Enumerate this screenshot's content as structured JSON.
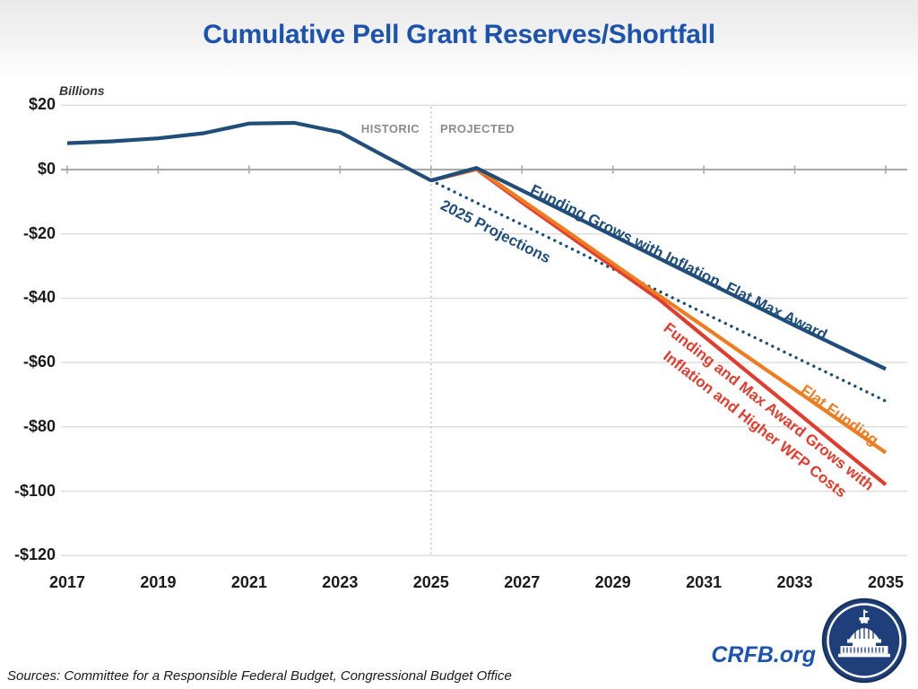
{
  "header": {
    "title": "Cumulative Pell Grant Reserves/Shortfall"
  },
  "chart_data": {
    "type": "line",
    "title": "Cumulative Pell Grant Reserves/Shortfall",
    "unit_label": "Billions",
    "xlabel": "",
    "ylabel": "Billions of dollars",
    "x_range": [
      2017,
      2035
    ],
    "y_range": [
      -120,
      20
    ],
    "grid": true,
    "x_tick_labels": [
      "2017",
      "2019",
      "2021",
      "2023",
      "2025",
      "2027",
      "2029",
      "2031",
      "2033",
      "2035"
    ],
    "y_tick_values": [
      20,
      0,
      -20,
      -40,
      -60,
      -80,
      -100,
      -120
    ],
    "y_tick_labels": [
      "$20",
      "$0",
      "-$20",
      "-$40",
      "-$60",
      "-$80",
      "-$100",
      "-$120"
    ],
    "divider_year": 2025,
    "region_labels": {
      "left": "HISTORIC",
      "right": "PROJECTED"
    },
    "series": [
      {
        "name": "2025 Projections",
        "color": "#1e4e79",
        "style": "dotted",
        "x": [
          2025,
          2026,
          2027,
          2028,
          2029,
          2030,
          2031,
          2032,
          2033,
          2034,
          2035
        ],
        "values": [
          -3.4,
          -10.3,
          -17.1,
          -24,
          -30.9,
          -37.7,
          -44.6,
          -51.4,
          -58.3,
          -65.1,
          -72
        ]
      },
      {
        "name": "Funding and Max Award Grows with Inflation and Higher WFP Costs",
        "color": "#e23c2e",
        "style": "solid",
        "x": [
          2025,
          2026,
          2027,
          2028,
          2029,
          2030,
          2031,
          2032,
          2033,
          2034,
          2035
        ],
        "values": [
          -3.4,
          0.1,
          -10.2,
          -20.2,
          -30.2,
          -40.2,
          -51.8,
          -63.4,
          -74.9,
          -86.5,
          -98
        ]
      },
      {
        "name": "Flat Funding",
        "color": "#ee7d22",
        "style": "solid",
        "x": [
          2025,
          2026,
          2027,
          2028,
          2029,
          2030,
          2031,
          2032,
          2033,
          2034,
          2035
        ],
        "values": [
          -3.4,
          0.3,
          -9.5,
          -19.3,
          -29.2,
          -39,
          -48.8,
          -58.6,
          -68.4,
          -78.2,
          -88
        ]
      },
      {
        "name": "Funding Grows with Inflation, Flat Max Award",
        "color": "#1e4e79",
        "style": "solid",
        "x": [
          2025,
          2026,
          2027,
          2028,
          2029,
          2030,
          2031,
          2032,
          2033,
          2034,
          2035
        ],
        "values": [
          -3.4,
          0.5,
          -6.5,
          -13.5,
          -20.5,
          -27.5,
          -34.5,
          -41.5,
          -48.5,
          -55.3,
          -62
        ]
      },
      {
        "name": "Historic",
        "color": "#1e4e79",
        "style": "solid",
        "x": [
          2017,
          2018,
          2019,
          2020,
          2021,
          2022,
          2023,
          2024,
          2025
        ],
        "values": [
          8.2,
          8.8,
          9.7,
          11.3,
          14.3,
          14.5,
          11.6,
          4.0,
          -3.4
        ]
      }
    ]
  },
  "annotations": {
    "historic": "HISTORIC",
    "projected": "PROJECTED",
    "label_inflation_flat_max": "Funding Grows with Inflation, Flat Max Award",
    "label_2025_projections": "2025 Projections",
    "label_flat_funding": "Flat Funding",
    "label_higher_costs_line1": "Funding and Max Award Grows with",
    "label_higher_costs_line2": "Inflation and Higher WFP Costs"
  },
  "footer": {
    "sources": "Sources: Committee for a Responsible Federal Budget, Congressional Budget Office",
    "site_label": "CRFB.org"
  },
  "colors": {
    "title_blue": "#1c53ae",
    "line_navy": "#1e4e79",
    "line_orange": "#ee7d22",
    "line_red": "#e23c2e",
    "gridline": "#dcdcdc",
    "zero_axis": "#a8a8a8",
    "region_gray": "#8c8c8c"
  }
}
